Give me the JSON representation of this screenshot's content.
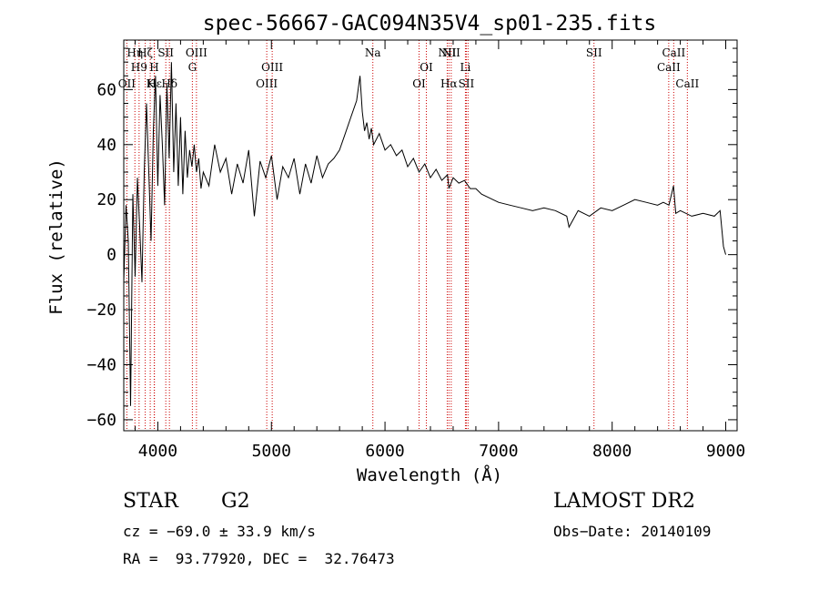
{
  "chart_data": {
    "type": "line",
    "title": "spec-56667-GAC094N35V4_sp01-235.fits",
    "xlabel": "Wavelength (Å)",
    "ylabel": "Flux (relative)",
    "xlim": [
      3700,
      9100
    ],
    "ylim": [
      -64,
      78
    ],
    "xticks": [
      4000,
      5000,
      6000,
      7000,
      8000,
      9000
    ],
    "yticks": [
      -60,
      -40,
      -20,
      0,
      20,
      40,
      60
    ],
    "x_minor_step": 200,
    "y_minor_step": 5,
    "series": [
      {
        "x": [
          3700,
          3720,
          3740,
          3760,
          3780,
          3800,
          3820,
          3840,
          3860,
          3880,
          3900,
          3920,
          3940,
          3960,
          3980,
          4000,
          4020,
          4040,
          4060,
          4080,
          4100,
          4120,
          4140,
          4160,
          4180,
          4200,
          4220,
          4240,
          4260,
          4280,
          4300,
          4320,
          4340,
          4360,
          4380,
          4400,
          4450,
          4500,
          4550,
          4600,
          4650,
          4700,
          4750,
          4800,
          4850,
          4900,
          4950,
          5000,
          5050,
          5100,
          5150,
          5200,
          5250,
          5300,
          5350,
          5400,
          5450,
          5500,
          5550,
          5600,
          5650,
          5700,
          5750,
          5780,
          5800,
          5820,
          5840,
          5860,
          5880,
          5900,
          5950,
          6000,
          6050,
          6100,
          6150,
          6200,
          6250,
          6300,
          6350,
          6400,
          6450,
          6500,
          6550,
          6563,
          6600,
          6650,
          6700,
          6750,
          6800,
          6850,
          6900,
          6950,
          7000,
          7100,
          7200,
          7300,
          7400,
          7500,
          7600,
          7620,
          7700,
          7800,
          7900,
          8000,
          8100,
          8200,
          8300,
          8400,
          8450,
          8500,
          8540,
          8560,
          8600,
          8700,
          8800,
          8900,
          8950,
          8980,
          9000
        ],
        "y": [
          -10,
          18,
          5,
          -55,
          22,
          -8,
          28,
          10,
          -10,
          30,
          55,
          30,
          5,
          45,
          65,
          25,
          58,
          40,
          18,
          62,
          35,
          70,
          30,
          55,
          25,
          50,
          22,
          45,
          28,
          38,
          32,
          40,
          30,
          35,
          24,
          30,
          25,
          40,
          30,
          35,
          22,
          33,
          26,
          38,
          14,
          34,
          28,
          36,
          20,
          32,
          28,
          35,
          22,
          33,
          26,
          36,
          28,
          33,
          35,
          38,
          44,
          50,
          56,
          65,
          52,
          45,
          48,
          42,
          46,
          40,
          44,
          38,
          40,
          36,
          38,
          32,
          35,
          30,
          33,
          28,
          31,
          27,
          29,
          24,
          28,
          26,
          27,
          24,
          24,
          22,
          21,
          20,
          19,
          18,
          17,
          16,
          17,
          16,
          14,
          10,
          16,
          14,
          17,
          16,
          18,
          20,
          19,
          18,
          19,
          18,
          25,
          15,
          16,
          14,
          15,
          14,
          16,
          3,
          0
        ]
      }
    ],
    "line_labels": [
      {
        "wave": 3727,
        "rows": [
          {
            "text": "OII",
            "row": 3
          }
        ],
        "line_color": "#cc0000"
      },
      {
        "wave": 3798,
        "rows": [
          {
            "text": "Hη",
            "row": 1
          }
        ],
        "line_color": "#cc0000"
      },
      {
        "wave": 3835,
        "rows": [
          {
            "text": "H9",
            "row": 2
          }
        ],
        "line_color": "#cc0000"
      },
      {
        "wave": 3889,
        "rows": [
          {
            "text": "Hζ",
            "row": 1
          }
        ],
        "line_color": "#cc0000"
      },
      {
        "wave": 3933,
        "rows": [
          {
            "text": "K",
            "row": 3
          }
        ],
        "line_color": "#cc0000"
      },
      {
        "wave": 3968,
        "rows": [
          {
            "text": "H",
            "row": 2
          }
        ],
        "line_color": "#cc0000"
      },
      {
        "wave": 3970,
        "rows": [
          {
            "text": "Hε",
            "row": 3
          }
        ],
        "line_color": "#cc0000"
      },
      {
        "wave": 4070,
        "rows": [
          {
            "text": "SII",
            "row": 1
          }
        ],
        "line_color": "#cc0000"
      },
      {
        "wave": 4102,
        "rows": [
          {
            "text": "Hδ",
            "row": 3
          }
        ],
        "line_color": "#cc0000"
      },
      {
        "wave": 4304,
        "rows": [
          {
            "text": "G",
            "row": 2
          }
        ],
        "line_color": "#cc0000"
      },
      {
        "wave": 4340,
        "rows": [
          {
            "text": "OIII",
            "row": 1
          }
        ],
        "line_color": "#cc0000"
      },
      {
        "wave": 4959,
        "rows": [
          {
            "text": "OIII",
            "row": 3
          }
        ],
        "line_color": "#cc0000"
      },
      {
        "wave": 5007,
        "rows": [
          {
            "text": "OIII",
            "row": 2
          }
        ],
        "line_color": "#cc0000"
      },
      {
        "wave": 5893,
        "rows": [
          {
            "text": "Na",
            "row": 1
          }
        ],
        "line_color": "#cc0000"
      },
      {
        "wave": 6300,
        "rows": [
          {
            "text": "OI",
            "row": 3
          }
        ],
        "line_color": "#cc0000"
      },
      {
        "wave": 6364,
        "rows": [
          {
            "text": "OI",
            "row": 2
          }
        ],
        "line_color": "#cc0000"
      },
      {
        "wave": 6548,
        "rows": [
          {
            "text": "NII",
            "row": 1
          }
        ],
        "line_color": "#cc0000"
      },
      {
        "wave": 6563,
        "rows": [
          {
            "text": "Hα",
            "row": 3
          }
        ],
        "line_color": "#cc0000"
      },
      {
        "wave": 6583,
        "rows": [
          {
            "text": "NII",
            "row": 1
          }
        ],
        "line_color": "#cc0000"
      },
      {
        "wave": 6708,
        "rows": [
          {
            "text": "Li",
            "row": 2
          }
        ],
        "line_color": "#cc0000"
      },
      {
        "wave": 6716,
        "rows": [
          {
            "text": "SII",
            "row": 3
          }
        ],
        "line_color": "#cc0000"
      },
      {
        "wave": 6731,
        "rows": [],
        "line_color": "#cc0000"
      },
      {
        "wave": 7840,
        "rows": [
          {
            "text": "SII",
            "row": 1
          }
        ],
        "line_color": "#cc0000"
      },
      {
        "wave": 8498,
        "rows": [
          {
            "text": "CaII",
            "row": 2
          }
        ],
        "line_color": "#cc0000"
      },
      {
        "wave": 8542,
        "rows": [
          {
            "text": "CaII",
            "row": 1
          }
        ],
        "line_color": "#cc0000"
      },
      {
        "wave": 8662,
        "rows": [
          {
            "text": "CaII",
            "row": 3
          }
        ],
        "line_color": "#cc0000"
      }
    ]
  },
  "footer": {
    "class": "STAR",
    "subclass": "G2",
    "survey": "LAMOST DR2",
    "cz": "cz = −69.0 ± 33.9 km/s",
    "obs_date": "Obs−Date: 20140109",
    "radec": "RA =  93.77920, DEC =  32.76473"
  },
  "colors": {
    "line_marker": "#cc0000",
    "spectrum": "#000000",
    "axes": "#000000"
  }
}
